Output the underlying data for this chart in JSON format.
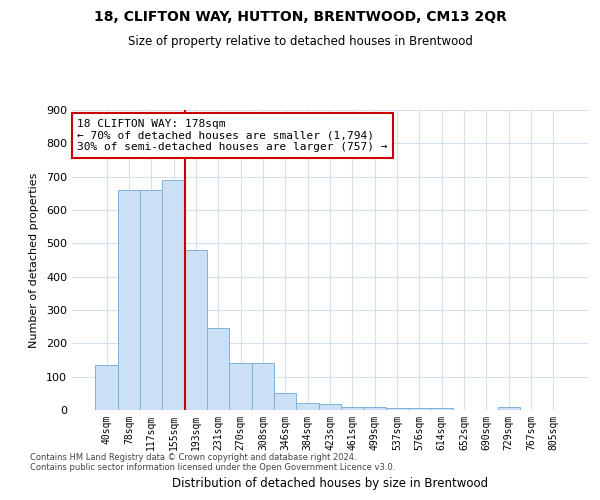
{
  "title": "18, CLIFTON WAY, HUTTON, BRENTWOOD, CM13 2QR",
  "subtitle": "Size of property relative to detached houses in Brentwood",
  "xlabel": "Distribution of detached houses by size in Brentwood",
  "ylabel": "Number of detached properties",
  "categories": [
    "40sqm",
    "78sqm",
    "117sqm",
    "155sqm",
    "193sqm",
    "231sqm",
    "270sqm",
    "308sqm",
    "346sqm",
    "384sqm",
    "423sqm",
    "461sqm",
    "499sqm",
    "537sqm",
    "576sqm",
    "614sqm",
    "652sqm",
    "690sqm",
    "729sqm",
    "767sqm",
    "805sqm"
  ],
  "values": [
    135,
    660,
    660,
    690,
    480,
    245,
    140,
    140,
    50,
    22,
    18,
    10,
    10,
    7,
    5,
    5,
    0,
    0,
    8,
    0,
    0
  ],
  "bar_color": "#cce0f5",
  "bar_edge_color": "#7fb3d9",
  "vline_color": "#cc0000",
  "vline_pos": 3.5,
  "annotation_text": "18 CLIFTON WAY: 178sqm\n← 70% of detached houses are smaller (1,794)\n30% of semi-detached houses are larger (757) →",
  "annotation_box_color": "#ffffff",
  "annotation_box_edge": "#cc0000",
  "ylim": [
    0,
    900
  ],
  "yticks": [
    0,
    100,
    200,
    300,
    400,
    500,
    600,
    700,
    800,
    900
  ],
  "footer1": "Contains HM Land Registry data © Crown copyright and database right 2024.",
  "footer2": "Contains public sector information licensed under the Open Government Licence v3.0.",
  "background_color": "#ffffff",
  "grid_color": "#d4dff0",
  "title_fontsize": 10,
  "subtitle_fontsize": 9
}
